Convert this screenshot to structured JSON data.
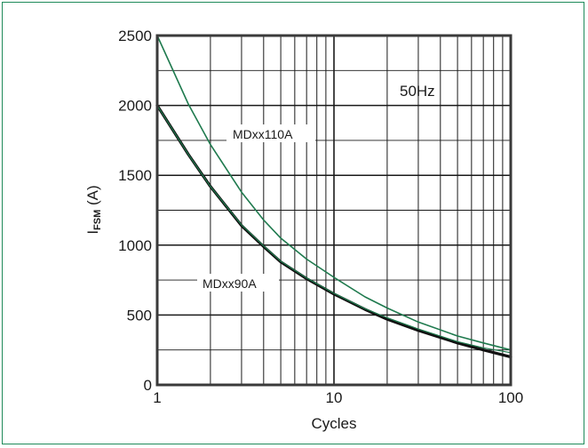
{
  "chart_data": {
    "type": "line",
    "xlabel": "Cycles",
    "ylabel_main": "I",
    "ylabel_sub": "FSM",
    "ylabel_unit": " (A)",
    "x_scale": "log",
    "xlim": [
      1,
      100
    ],
    "ylim": [
      0,
      2500
    ],
    "x_ticks": [
      1,
      10,
      100
    ],
    "x_tick_labels": [
      "1",
      "10",
      "100"
    ],
    "y_ticks": [
      0,
      500,
      1000,
      1500,
      2000,
      2500
    ],
    "y_tick_labels": [
      "0",
      "500",
      "1000",
      "1500",
      "2000",
      "2500"
    ],
    "grid": true,
    "annotation": "50Hz",
    "series": [
      {
        "name": "MDxx110A",
        "color": "#1f7a4e",
        "width": 1.6,
        "x": [
          1,
          1.5,
          2,
          3,
          4,
          5,
          7,
          10,
          15,
          20,
          30,
          50,
          70,
          100
        ],
        "y": [
          2500,
          2010,
          1720,
          1380,
          1180,
          1050,
          900,
          770,
          630,
          550,
          450,
          350,
          300,
          250
        ]
      },
      {
        "name": "MDxx90A",
        "color": "#111111",
        "width": 3.2,
        "x": [
          1,
          1.5,
          2,
          3,
          4,
          5,
          7,
          10,
          15,
          20,
          30,
          50,
          70,
          100
        ],
        "y": [
          2000,
          1650,
          1420,
          1140,
          990,
          880,
          760,
          650,
          540,
          470,
          390,
          300,
          250,
          200
        ]
      },
      {
        "name": "",
        "color": "#1f7a4e",
        "width": 1.2,
        "x": [
          1,
          1.5,
          2,
          3,
          4,
          5,
          7,
          10,
          15,
          20,
          30,
          50,
          70,
          100
        ],
        "y": [
          2000,
          1650,
          1420,
          1145,
          995,
          885,
          765,
          655,
          545,
          480,
          400,
          310,
          265,
          230
        ]
      }
    ],
    "labels": [
      "MDxx110A",
      "MDxx90A"
    ]
  }
}
